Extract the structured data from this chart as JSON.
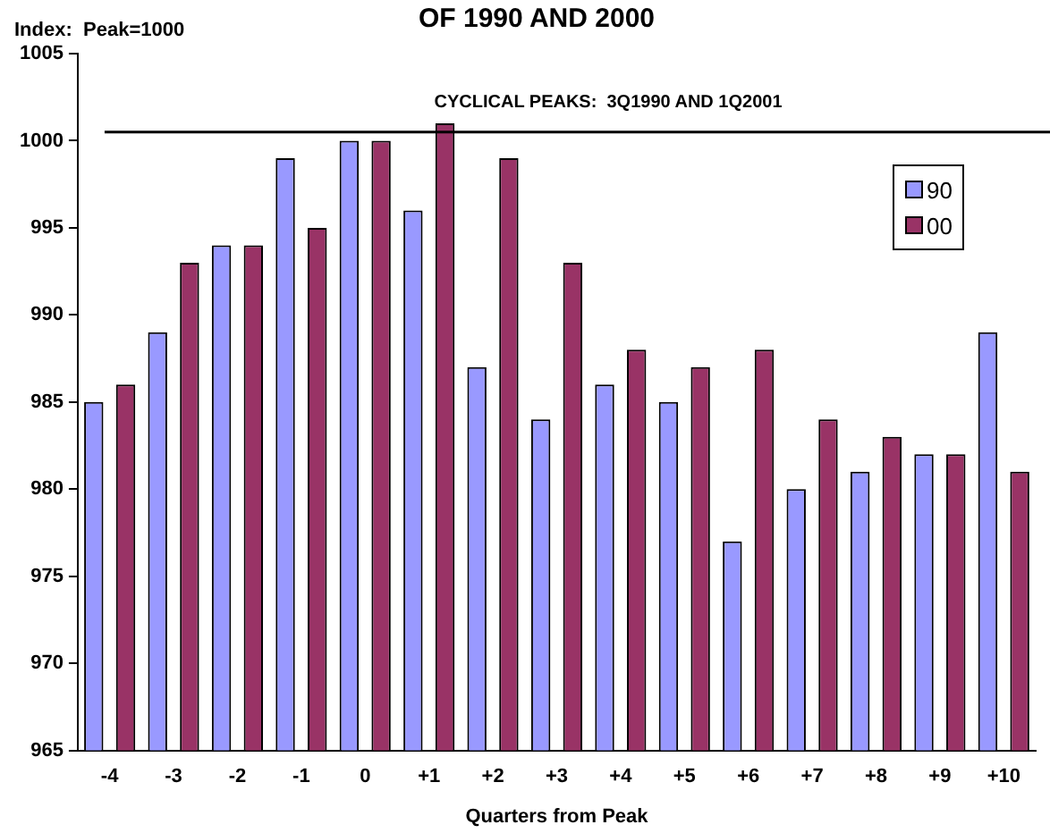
{
  "chart_data": {
    "type": "bar",
    "title": "OF 1990 AND 2000",
    "ylabel": "Index:  Peak=1000",
    "xlabel": "Quarters from Peak",
    "categories": [
      "-4",
      "-3",
      "-2",
      "-1",
      "0",
      "+1",
      "+2",
      "+3",
      "+4",
      "+5",
      "+6",
      "+7",
      "+8",
      "+9",
      "+10"
    ],
    "series": [
      {
        "name": "90",
        "color": "#9999ff",
        "values": [
          985,
          989,
          994,
          999,
          1000,
          996,
          987,
          984,
          986,
          985,
          977,
          980,
          981,
          982,
          989
        ]
      },
      {
        "name": "00",
        "color": "#993366",
        "values": [
          986,
          993,
          994,
          995,
          1000,
          1001,
          999,
          993,
          988,
          987,
          988,
          984,
          983,
          982,
          981
        ]
      }
    ],
    "ylim": [
      965,
      1005
    ],
    "yticks": [
      965,
      970,
      975,
      980,
      985,
      990,
      995,
      1000,
      1005
    ],
    "ref_lines": [
      {
        "axis": "y",
        "value": 1000.5,
        "color": "#000000"
      }
    ],
    "annotations": [
      "CYCLICAL PEAKS:  3Q1990 AND 1Q2001"
    ],
    "legend": "top right",
    "grid": false
  }
}
